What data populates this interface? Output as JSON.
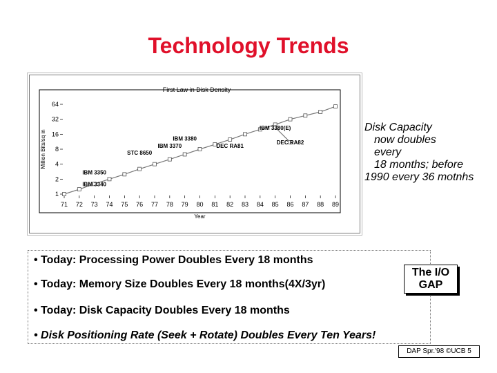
{
  "slide": {
    "title": "Technology Trends",
    "side_text_lines": [
      "Disk Capacity",
      "now doubles",
      "every",
      "18 months; before",
      "1990 every 36 motnhs"
    ],
    "bullets": [
      "• Today: Processing Power Doubles Every 18 months",
      "• Today: Memory Size Doubles Every 18 months(4X/3yr)",
      "• Today: Disk Capacity Doubles Every 18 months",
      "• Disk Positioning Rate (Seek + Rotate) Doubles Every Ten Years!"
    ],
    "gap_box": [
      "The I/O",
      "GAP"
    ],
    "footer": "DAP Spr.'98 ©UCB 5"
  },
  "chart_data": {
    "type": "line",
    "title": "First Law in Disk Density",
    "xlabel": "Year",
    "ylabel": "Million Bits/sq in",
    "y_scale": "log2",
    "categories": [
      "71",
      "72",
      "73",
      "74",
      "75",
      "76",
      "77",
      "78",
      "79",
      "80",
      "81",
      "82",
      "83",
      "84",
      "85",
      "86",
      "87",
      "88",
      "89"
    ],
    "y_ticks": [
      1,
      2,
      4,
      8,
      16,
      32,
      64
    ],
    "series": [
      {
        "values": [
          1,
          1.25,
          1.6,
          2.0,
          2.5,
          3.2,
          4.0,
          5.0,
          6.3,
          8.0,
          10,
          12.5,
          16,
          20,
          25,
          32,
          38,
          45,
          58
        ]
      },
      {
        "values": [
          null,
          null,
          null,
          null,
          null,
          null,
          null,
          null,
          null,
          null,
          null,
          null,
          null,
          null,
          22,
          11,
          null,
          null,
          null
        ]
      }
    ],
    "annotations": [
      {
        "text": "IBM 3340",
        "year": 73,
        "value": 1.45
      },
      {
        "text": "IBM 3350",
        "year": 73,
        "value": 2.5
      },
      {
        "text": "STC 8650",
        "year": 76,
        "value": 6.2
      },
      {
        "text": "IBM 3370",
        "year": 78,
        "value": 8.5
      },
      {
        "text": "IBM 3380",
        "year": 79,
        "value": 12
      },
      {
        "text": "DEC RA81",
        "year": 82,
        "value": 8.5
      },
      {
        "text": "IBM 3380(E)",
        "year": 85,
        "value": 19.5
      },
      {
        "text": "DEC RA82",
        "year": 86,
        "value": 10
      }
    ],
    "grid": false,
    "colors": {
      "line": "#777777",
      "marker_fill": "#ffffff",
      "text": "#000000"
    }
  }
}
